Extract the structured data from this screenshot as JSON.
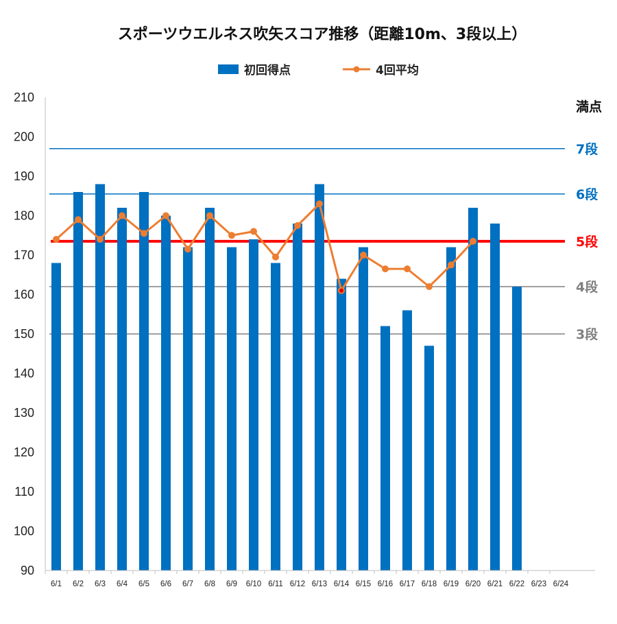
{
  "chart_data": {
    "type": "bar",
    "title": "スポーツウエルネス吹矢スコア推移（距離10m、3段以上）",
    "legend": {
      "placement": "top-center",
      "bar_label": "初回得点",
      "line_label": "4回平均"
    },
    "categories": [
      "6/1",
      "6/2",
      "6/3",
      "6/4",
      "6/5",
      "6/6",
      "6/7",
      "6/8",
      "6/9",
      "6/10",
      "6/11",
      "6/12",
      "6/13",
      "6/14",
      "6/15",
      "6/16",
      "6/17",
      "6/18",
      "6/19",
      "6/20",
      "6/21",
      "6/22",
      "6/23",
      "6/24"
    ],
    "series": [
      {
        "name": "初回得点",
        "type": "bar",
        "color": "#0070c0",
        "values": [
          168,
          186,
          188,
          182,
          186,
          180,
          172,
          182,
          172,
          174,
          168,
          178,
          188,
          164,
          172,
          152,
          156,
          147,
          172,
          182,
          178,
          162,
          null,
          null
        ]
      },
      {
        "name": "4回平均",
        "type": "line",
        "color": "#ed7d31",
        "values": [
          174,
          179,
          174,
          180,
          175.5,
          180,
          171.5,
          180,
          175,
          176,
          169.5,
          177.5,
          183,
          161,
          170,
          166.5,
          166.5,
          162,
          167.5,
          173.5,
          null,
          null,
          null,
          null
        ],
        "highlight_point": {
          "category": "6/14",
          "color": "#e00000"
        }
      }
    ],
    "reference_lines": [
      {
        "label": "満点",
        "value": 210,
        "color": "#111111",
        "line": false
      },
      {
        "label": "7段",
        "value": 197,
        "color": "#0070c0"
      },
      {
        "label": "6段",
        "value": 185.5,
        "color": "#0070c0"
      },
      {
        "label": "5段",
        "value": 173.5,
        "color": "#ff0000"
      },
      {
        "label": "4段",
        "value": 162,
        "color": "#808080"
      },
      {
        "label": "3段",
        "value": 150,
        "color": "#808080"
      }
    ],
    "xlabel": "",
    "ylabel": "",
    "ylim": [
      90,
      210
    ],
    "yticks": [
      90,
      100,
      110,
      120,
      130,
      140,
      150,
      160,
      170,
      180,
      190,
      200,
      210
    ],
    "grid": false
  }
}
